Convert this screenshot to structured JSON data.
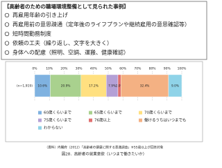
{
  "box": {
    "title": "【高齢者のための職場環境整備として見られた事例】",
    "items": [
      "再雇用年齢の引き上げ",
      "再雇用前の意思疎通（定年後のライフプランや継続雇用の意思確認等）",
      "短時間勤務制度",
      "依頼の工夫（繰り返し、文字を大きく）",
      "身体への配慮（照明、空調、運搬、健康確認）"
    ]
  },
  "chart_data": {
    "type": "stacked-bar",
    "orientation": "horizontal",
    "categories": [
      "(n=1,919)"
    ],
    "series": [
      {
        "name": "60歳くらいまで",
        "color": "#7fb2e0",
        "values": [
          10.6
        ],
        "value_labels": [
          "10.6%"
        ]
      },
      {
        "name": "65歳くらいまで",
        "color": "#a9d18e",
        "values": [
          20.9
        ],
        "value_labels": [
          "20.9%"
        ]
      },
      {
        "name": "70歳くらいまで",
        "color": "#ffe080",
        "values": [
          17.2
        ],
        "value_labels": [
          "17.2%"
        ]
      },
      {
        "name": "75歳くらいまで",
        "color": "#b4a0d6",
        "values": [
          7.9
        ],
        "value_labels": [
          "7.9%"
        ]
      },
      {
        "name": "76歳以上",
        "color": "#e07070",
        "values": [
          2.0
        ],
        "value_labels": [
          "2.0%"
        ]
      },
      {
        "name": "働けるうちはいつまでも",
        "color": "#f4b183",
        "values": [
          32.4
        ],
        "value_labels": [
          "32.4%"
        ]
      },
      {
        "name": "わからない",
        "color": "#8fd3e8",
        "values": [
          9.0
        ],
        "value_labels": [
          "9.0%"
        ]
      }
    ],
    "xlim": [
      0,
      100
    ],
    "xticks": [
      {
        "value": 0,
        "label": "0%"
      },
      {
        "value": 10,
        "label": "10%"
      },
      {
        "value": 20,
        "label": "20%"
      },
      {
        "value": 30,
        "label": "30%"
      },
      {
        "value": 40,
        "label": "40%"
      },
      {
        "value": 50,
        "label": "50%"
      },
      {
        "value": 60,
        "label": "60%"
      },
      {
        "value": 70,
        "label": "70%"
      },
      {
        "value": 80,
        "label": "80%"
      },
      {
        "value": 90,
        "label": "90%"
      },
      {
        "value": 100,
        "label": "100%"
      }
    ],
    "grid": true
  },
  "source": "（資料）内閣府（2012）「高齢者の健康に関する意識調査」※55歳以上が回答対象",
  "caption": "図28．高齢者の就業意欲（いつまで働きたいか）"
}
